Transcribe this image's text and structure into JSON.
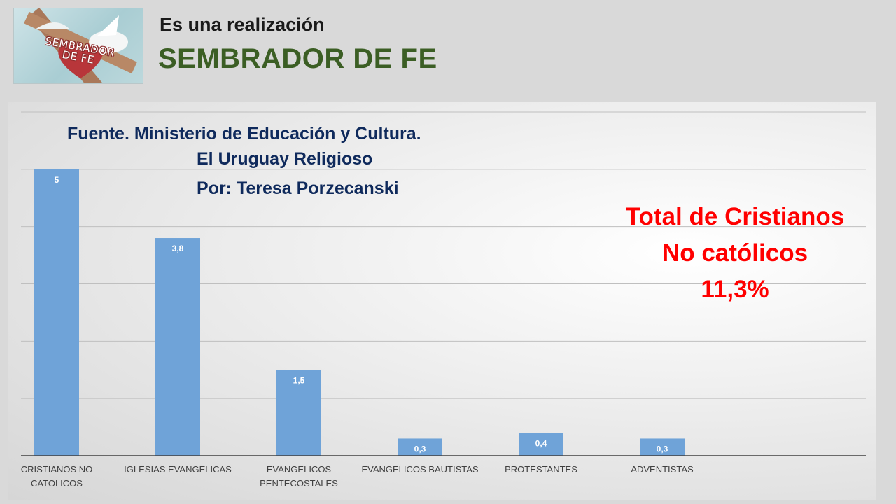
{
  "header": {
    "logo_text": [
      "SEMBRADOR",
      "DE FE"
    ],
    "subtitle": "Es una realización",
    "title": "SEMBRADOR DE FE"
  },
  "source": {
    "line1": "Fuente. Ministerio de Educación  y Cultura.",
    "line2": "El Uruguay Religioso",
    "line3": "Por: Teresa Porzecanski"
  },
  "annotation": {
    "line1": "Total de Cristianos",
    "line2": "No católicos",
    "line3": "11,3%"
  },
  "colors": {
    "bar": "#6fa3d8",
    "title_green": "#3b5e24",
    "source_blue": "#0f2a5c",
    "total_red": "#ff0000",
    "gridline": "#bfbfbf"
  },
  "chart_data": {
    "type": "bar",
    "title": "",
    "xlabel": "",
    "ylabel": "",
    "categories": [
      [
        "CRISTIANOS NO",
        "CATOLICOS"
      ],
      [
        "IGLESIAS EVANGELICAS"
      ],
      [
        "EVANGELICOS",
        "PENTECOSTALES"
      ],
      [
        "EVANGELICOS BAUTISTAS"
      ],
      [
        "PROTESTANTES"
      ],
      [
        "ADVENTISTAS"
      ]
    ],
    "values": [
      5,
      3.8,
      1.5,
      0.3,
      0.4,
      0.3
    ],
    "data_labels": [
      "5",
      "3,8",
      "1,5",
      "0,3",
      "0,4",
      "0,3"
    ],
    "ylim": [
      0,
      6
    ],
    "grid": true,
    "legend": "none"
  }
}
